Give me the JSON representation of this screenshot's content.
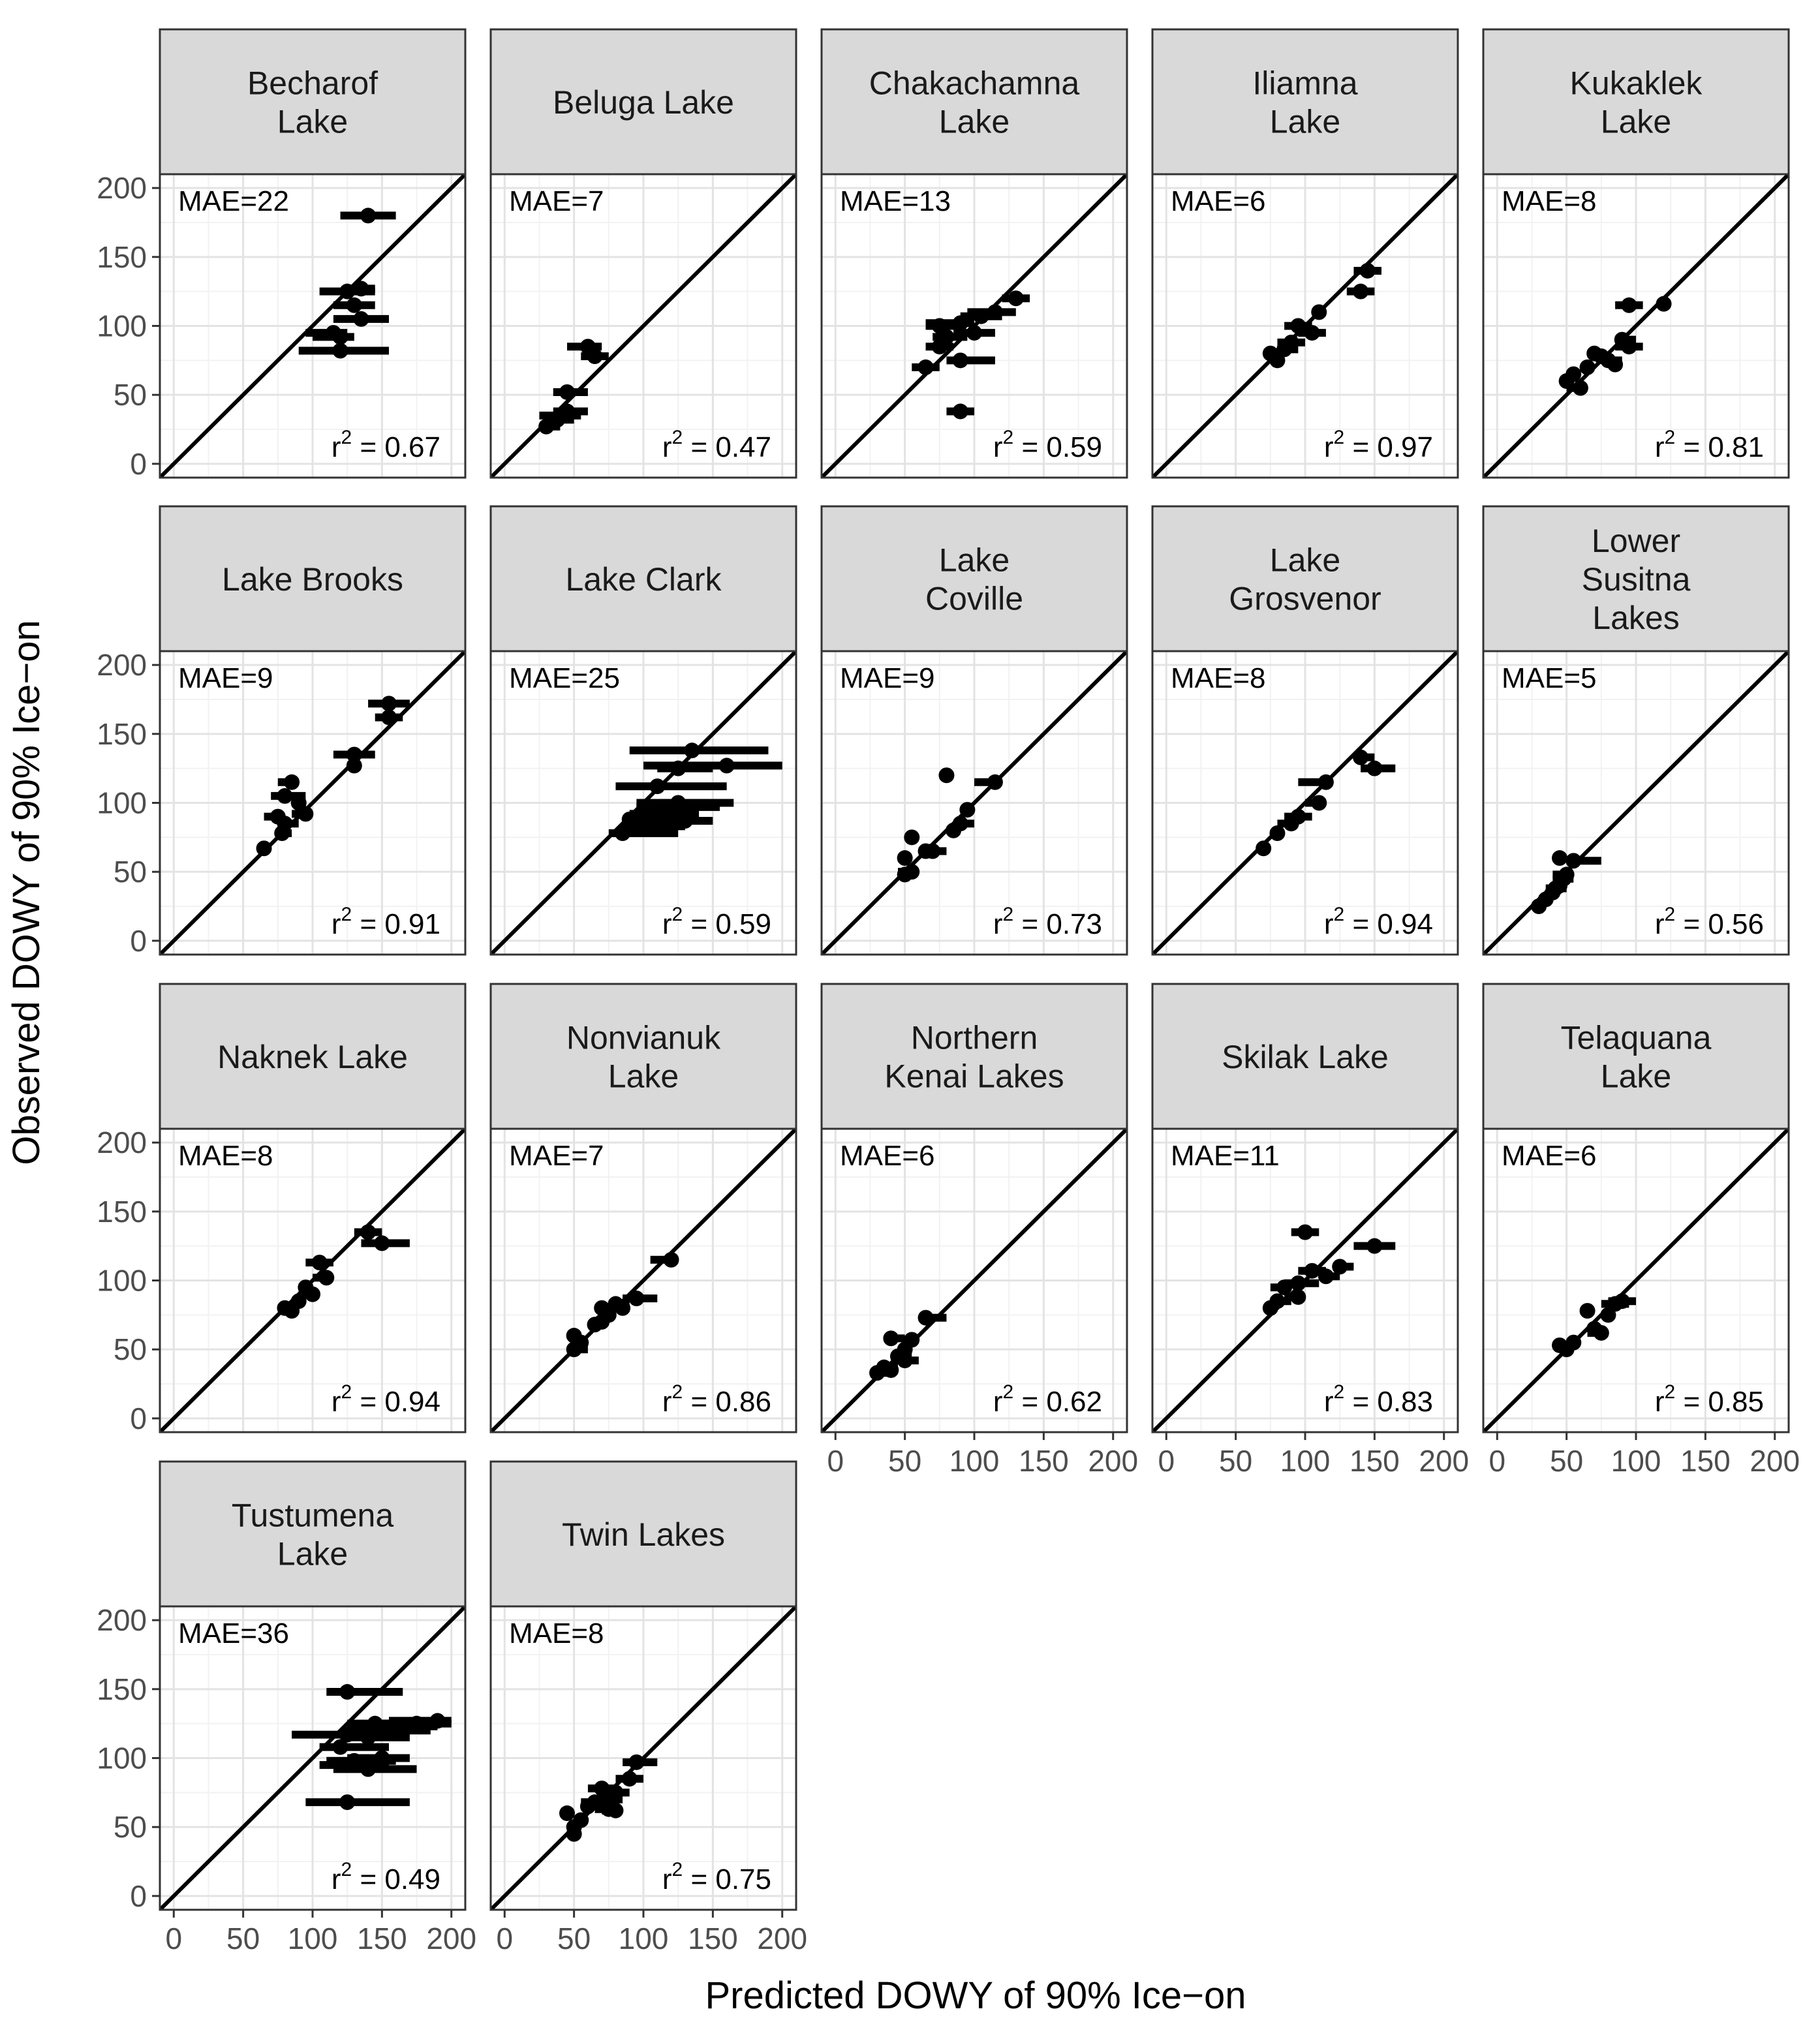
{
  "chart_data": {
    "type": "scatter",
    "layout": "faceted-grid",
    "xlabel": "Predicted DOWY of 90% Ice−on",
    "ylabel": "Observed DOWY of 90% Ice−on",
    "xlim": [
      -10,
      210
    ],
    "ylim": [
      -10,
      210
    ],
    "xticks": [
      0,
      50,
      100,
      150,
      200
    ],
    "yticks": [
      0,
      50,
      100,
      150,
      200
    ],
    "grid": true,
    "reference_line": "y = x",
    "point_style": "filled circle with horizontal error bar (predicted range)",
    "colors": {
      "point": "#000000",
      "line": "#000000",
      "strip_fill": "#d9d9d9",
      "strip_border": "#333333",
      "grid_major": "#e3e3e3",
      "grid_minor": "#f2f2f2",
      "panel_border": "#333333",
      "tick_text": "#4d4d4d"
    },
    "panels": [
      {
        "title": [
          "Becharof",
          "Lake"
        ],
        "mae_label": "MAE=22",
        "r2_value": "0.67",
        "points": [
          [
            140,
            180,
            120,
            160
          ],
          [
            125,
            125,
            105,
            145
          ],
          [
            135,
            127,
            125,
            145
          ],
          [
            130,
            115,
            115,
            145
          ],
          [
            135,
            105,
            115,
            155
          ],
          [
            115,
            95,
            95,
            125
          ],
          [
            120,
            92,
            100,
            130
          ],
          [
            120,
            82,
            90,
            155
          ]
        ]
      },
      {
        "title": [
          "Beluga Lake"
        ],
        "mae_label": "MAE=7",
        "r2_value": "0.47",
        "points": [
          [
            60,
            85,
            45,
            70
          ],
          [
            65,
            78,
            55,
            75
          ],
          [
            45,
            52,
            35,
            60
          ],
          [
            45,
            38,
            35,
            60
          ],
          [
            40,
            35,
            25,
            55
          ],
          [
            38,
            32,
            30,
            50
          ],
          [
            30,
            27,
            25,
            40
          ]
        ]
      },
      {
        "title": [
          "Chakachamna",
          "Lake"
        ],
        "mae_label": "MAE=13",
        "r2_value": "0.59",
        "points": [
          [
            130,
            120,
            120,
            140
          ],
          [
            115,
            110,
            95,
            130
          ],
          [
            105,
            107,
            90,
            120
          ],
          [
            90,
            102,
            65,
            100
          ],
          [
            75,
            100,
            65,
            90
          ],
          [
            100,
            95,
            85,
            115
          ],
          [
            80,
            92,
            70,
            95
          ],
          [
            75,
            85,
            65,
            85
          ],
          [
            65,
            70,
            55,
            75
          ],
          [
            90,
            75,
            80,
            115
          ],
          [
            90,
            38,
            80,
            100
          ]
        ]
      },
      {
        "title": [
          "Iliamna",
          "Lake"
        ],
        "mae_label": "MAE=6",
        "r2_value": "0.97",
        "points": [
          [
            145,
            140,
            135,
            155
          ],
          [
            140,
            125,
            130,
            150
          ],
          [
            110,
            110,
            105,
            115
          ],
          [
            95,
            100,
            85,
            105
          ],
          [
            105,
            95,
            95,
            115
          ],
          [
            90,
            88,
            80,
            100
          ],
          [
            85,
            83,
            80,
            95
          ],
          [
            75,
            80,
            70,
            85
          ],
          [
            80,
            75,
            75,
            85
          ]
        ]
      },
      {
        "title": [
          "Kukaklek",
          "Lake"
        ],
        "mae_label": "MAE=8",
        "r2_value": "0.81",
        "points": [
          [
            120,
            116,
            115,
            125
          ],
          [
            95,
            115,
            85,
            105
          ],
          [
            90,
            90,
            85,
            100
          ],
          [
            95,
            85,
            85,
            105
          ],
          [
            70,
            80,
            65,
            75
          ],
          [
            75,
            78,
            70,
            80
          ],
          [
            80,
            75,
            75,
            90
          ],
          [
            85,
            72,
            80,
            90
          ],
          [
            65,
            70,
            60,
            70
          ],
          [
            55,
            65,
            50,
            60
          ],
          [
            50,
            60,
            45,
            55
          ],
          [
            60,
            55,
            50,
            65
          ]
        ]
      },
      {
        "title": [
          "Lake Brooks"
        ],
        "mae_label": "MAE=9",
        "r2_value": "0.91",
        "points": [
          [
            155,
            172,
            140,
            170
          ],
          [
            155,
            162,
            145,
            165
          ],
          [
            130,
            135,
            115,
            145
          ],
          [
            130,
            127,
            125,
            135
          ],
          [
            85,
            115,
            75,
            90
          ],
          [
            80,
            105,
            70,
            95
          ],
          [
            90,
            100,
            85,
            95
          ],
          [
            95,
            92,
            85,
            100
          ],
          [
            75,
            90,
            65,
            80
          ],
          [
            80,
            85,
            75,
            90
          ],
          [
            78,
            78,
            75,
            85
          ],
          [
            65,
            67,
            60,
            70
          ]
        ]
      },
      {
        "title": [
          "Lake Clark"
        ],
        "mae_label": "MAE=25",
        "r2_value": "0.59",
        "points": [
          [
            135,
            138,
            90,
            190
          ],
          [
            160,
            127,
            100,
            200
          ],
          [
            125,
            125,
            110,
            150
          ],
          [
            110,
            112,
            80,
            160
          ],
          [
            125,
            100,
            95,
            165
          ],
          [
            105,
            97,
            95,
            155
          ],
          [
            110,
            95,
            100,
            125
          ],
          [
            115,
            92,
            90,
            140
          ],
          [
            105,
            90,
            90,
            135
          ],
          [
            130,
            87,
            85,
            150
          ],
          [
            90,
            88,
            85,
            125
          ],
          [
            100,
            83,
            85,
            130
          ],
          [
            85,
            78,
            75,
            125
          ]
        ]
      },
      {
        "title": [
          "Lake",
          "Coville"
        ],
        "mae_label": "MAE=9",
        "r2_value": "0.73",
        "points": [
          [
            80,
            120,
            75,
            85
          ],
          [
            115,
            115,
            100,
            120
          ],
          [
            95,
            95,
            90,
            100
          ],
          [
            90,
            85,
            85,
            100
          ],
          [
            85,
            80,
            80,
            90
          ],
          [
            70,
            65,
            65,
            80
          ],
          [
            65,
            65,
            60,
            70
          ],
          [
            55,
            75,
            50,
            60
          ],
          [
            50,
            60,
            45,
            55
          ],
          [
            55,
            50,
            45,
            60
          ],
          [
            50,
            48,
            45,
            55
          ]
        ]
      },
      {
        "title": [
          "Lake",
          "Grosvenor"
        ],
        "mae_label": "MAE=8",
        "r2_value": "0.94",
        "points": [
          [
            140,
            133,
            135,
            150
          ],
          [
            150,
            125,
            140,
            165
          ],
          [
            115,
            115,
            95,
            120
          ],
          [
            110,
            100,
            100,
            115
          ],
          [
            95,
            90,
            85,
            105
          ],
          [
            90,
            85,
            80,
            95
          ],
          [
            80,
            78,
            75,
            85
          ],
          [
            70,
            67,
            65,
            75
          ]
        ]
      },
      {
        "title": [
          "Lower",
          "Susitna",
          "Lakes"
        ],
        "mae_label": "MAE=5",
        "r2_value": "0.56",
        "points": [
          [
            55,
            58,
            50,
            75
          ],
          [
            45,
            60,
            40,
            50
          ],
          [
            50,
            48,
            40,
            55
          ],
          [
            48,
            45,
            40,
            55
          ],
          [
            45,
            40,
            40,
            50
          ],
          [
            42,
            38,
            35,
            50
          ],
          [
            40,
            35,
            35,
            45
          ],
          [
            35,
            30,
            30,
            40
          ],
          [
            30,
            25,
            25,
            35
          ]
        ]
      },
      {
        "title": [
          "Naknek Lake"
        ],
        "mae_label": "MAE=8",
        "r2_value": "0.94",
        "points": [
          [
            140,
            135,
            130,
            150
          ],
          [
            150,
            127,
            135,
            170
          ],
          [
            105,
            113,
            95,
            115
          ],
          [
            110,
            102,
            100,
            115
          ],
          [
            95,
            95,
            90,
            100
          ],
          [
            100,
            90,
            90,
            105
          ],
          [
            90,
            85,
            85,
            95
          ],
          [
            80,
            80,
            75,
            90
          ],
          [
            85,
            78,
            80,
            90
          ]
        ]
      },
      {
        "title": [
          "Nonvianuk",
          "Lake"
        ],
        "mae_label": "MAE=7",
        "r2_value": "0.86",
        "points": [
          [
            120,
            115,
            105,
            125
          ],
          [
            95,
            87,
            85,
            110
          ],
          [
            80,
            83,
            75,
            90
          ],
          [
            85,
            80,
            75,
            90
          ],
          [
            75,
            75,
            70,
            80
          ],
          [
            70,
            70,
            65,
            75
          ],
          [
            65,
            68,
            60,
            70
          ],
          [
            70,
            80,
            65,
            75
          ],
          [
            50,
            60,
            45,
            55
          ],
          [
            55,
            55,
            50,
            60
          ],
          [
            50,
            50,
            45,
            60
          ]
        ]
      },
      {
        "title": [
          "Northern",
          "Kenai Lakes"
        ],
        "mae_label": "MAE=6",
        "r2_value": "0.62",
        "points": [
          [
            65,
            73,
            60,
            80
          ],
          [
            55,
            57,
            50,
            60
          ],
          [
            40,
            58,
            35,
            50
          ],
          [
            50,
            50,
            45,
            55
          ],
          [
            45,
            45,
            40,
            55
          ],
          [
            50,
            42,
            45,
            60
          ],
          [
            35,
            37,
            30,
            45
          ],
          [
            40,
            35,
            35,
            45
          ],
          [
            30,
            33,
            25,
            40
          ]
        ]
      },
      {
        "title": [
          "Skilak Lake"
        ],
        "mae_label": "MAE=11",
        "r2_value": "0.83",
        "points": [
          [
            100,
            135,
            90,
            110
          ],
          [
            150,
            125,
            135,
            165
          ],
          [
            125,
            110,
            120,
            135
          ],
          [
            105,
            107,
            95,
            115
          ],
          [
            115,
            103,
            110,
            125
          ],
          [
            95,
            98,
            85,
            110
          ],
          [
            85,
            95,
            75,
            90
          ],
          [
            95,
            88,
            85,
            100
          ],
          [
            80,
            85,
            75,
            90
          ],
          [
            75,
            80,
            70,
            80
          ]
        ]
      },
      {
        "title": [
          "Telaquana",
          "Lake"
        ],
        "mae_label": "MAE=6",
        "r2_value": "0.85",
        "points": [
          [
            90,
            85,
            80,
            100
          ],
          [
            85,
            83,
            75,
            95
          ],
          [
            65,
            78,
            60,
            70
          ],
          [
            80,
            75,
            75,
            85
          ],
          [
            70,
            65,
            65,
            75
          ],
          [
            75,
            62,
            65,
            80
          ],
          [
            55,
            55,
            50,
            60
          ],
          [
            45,
            53,
            40,
            55
          ],
          [
            50,
            50,
            45,
            55
          ]
        ]
      },
      {
        "title": [
          "Tustumena",
          "Lake"
        ],
        "mae_label": "MAE=36",
        "r2_value": "0.49",
        "points": [
          [
            125,
            148,
            110,
            165
          ],
          [
            190,
            127,
            155,
            200
          ],
          [
            175,
            125,
            150,
            200
          ],
          [
            160,
            123,
            140,
            190
          ],
          [
            145,
            125,
            125,
            175
          ],
          [
            155,
            120,
            125,
            185
          ],
          [
            125,
            117,
            85,
            165
          ],
          [
            140,
            115,
            120,
            170
          ],
          [
            120,
            108,
            105,
            155
          ],
          [
            150,
            100,
            125,
            170
          ],
          [
            130,
            98,
            110,
            160
          ],
          [
            125,
            95,
            105,
            155
          ],
          [
            140,
            92,
            115,
            175
          ],
          [
            125,
            68,
            95,
            170
          ]
        ]
      },
      {
        "title": [
          "Twin Lakes"
        ],
        "mae_label": "MAE=8",
        "r2_value": "0.75",
        "points": [
          [
            95,
            97,
            85,
            110
          ],
          [
            90,
            85,
            80,
            100
          ],
          [
            70,
            78,
            60,
            80
          ],
          [
            80,
            75,
            70,
            90
          ],
          [
            75,
            70,
            65,
            85
          ],
          [
            65,
            68,
            55,
            75
          ],
          [
            60,
            65,
            55,
            70
          ],
          [
            75,
            63,
            65,
            80
          ],
          [
            80,
            62,
            70,
            85
          ],
          [
            55,
            55,
            50,
            60
          ],
          [
            45,
            60,
            40,
            50
          ],
          [
            50,
            50,
            45,
            55
          ],
          [
            50,
            45,
            45,
            55
          ]
        ]
      }
    ]
  }
}
